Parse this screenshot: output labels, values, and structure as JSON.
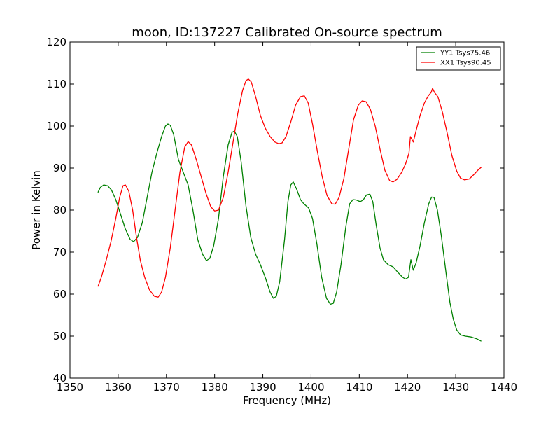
{
  "chart_data": {
    "type": "line",
    "title": "moon, ID:137227 Calibrated On-source spectrum",
    "xlabel": "Frequency (MHz)",
    "ylabel": "Power in Kelvin",
    "xlim": [
      1350,
      1440
    ],
    "ylim": [
      40,
      120
    ],
    "xticks": [
      "1350",
      "1360",
      "1370",
      "1380",
      "1390",
      "1400",
      "1410",
      "1420",
      "1430",
      "1440"
    ],
    "yticks": [
      "40",
      "50",
      "60",
      "70",
      "80",
      "90",
      "100",
      "110",
      "120"
    ],
    "grid": false,
    "legend_position": "top-right",
    "series": [
      {
        "name": "YY1 Tsys75.46",
        "color": "#008000",
        "points": [
          [
            1355.8,
            84.2
          ],
          [
            1356.3,
            85.4
          ],
          [
            1357.0,
            86.0
          ],
          [
            1357.8,
            85.8
          ],
          [
            1358.6,
            84.8
          ],
          [
            1359.5,
            82.5
          ],
          [
            1360.5,
            79.0
          ],
          [
            1361.5,
            75.5
          ],
          [
            1362.5,
            73.0
          ],
          [
            1363.2,
            72.5
          ],
          [
            1364.0,
            73.5
          ],
          [
            1365.0,
            77.0
          ],
          [
            1366.0,
            83.0
          ],
          [
            1367.0,
            89.0
          ],
          [
            1368.0,
            93.5
          ],
          [
            1369.0,
            97.5
          ],
          [
            1369.8,
            100.0
          ],
          [
            1370.3,
            100.5
          ],
          [
            1370.8,
            100.2
          ],
          [
            1371.5,
            98.0
          ],
          [
            1372.5,
            92.0
          ],
          [
            1373.5,
            89.0
          ],
          [
            1374.5,
            86.0
          ],
          [
            1375.5,
            80.0
          ],
          [
            1376.5,
            73.0
          ],
          [
            1377.5,
            69.5
          ],
          [
            1378.3,
            68.0
          ],
          [
            1379.0,
            68.5
          ],
          [
            1379.8,
            71.5
          ],
          [
            1380.8,
            78.0
          ],
          [
            1381.8,
            88.0
          ],
          [
            1382.8,
            95.5
          ],
          [
            1383.6,
            98.5
          ],
          [
            1384.1,
            98.8
          ],
          [
            1384.7,
            97.5
          ],
          [
            1385.5,
            91.5
          ],
          [
            1386.5,
            81.0
          ],
          [
            1387.5,
            73.5
          ],
          [
            1388.5,
            69.5
          ],
          [
            1389.5,
            67.0
          ],
          [
            1390.5,
            64.0
          ],
          [
            1391.5,
            60.5
          ],
          [
            1392.2,
            59.0
          ],
          [
            1392.8,
            59.5
          ],
          [
            1393.5,
            63.0
          ],
          [
            1394.5,
            73.0
          ],
          [
            1395.2,
            82.0
          ],
          [
            1395.8,
            86.0
          ],
          [
            1396.3,
            86.7
          ],
          [
            1397.0,
            85.0
          ],
          [
            1397.8,
            82.5
          ],
          [
            1398.5,
            81.5
          ],
          [
            1399.5,
            80.5
          ],
          [
            1400.3,
            78.0
          ],
          [
            1401.2,
            72.0
          ],
          [
            1402.2,
            64.0
          ],
          [
            1403.2,
            59.0
          ],
          [
            1404.0,
            57.6
          ],
          [
            1404.6,
            57.8
          ],
          [
            1405.3,
            60.5
          ],
          [
            1406.2,
            67.0
          ],
          [
            1407.2,
            76.0
          ],
          [
            1408.0,
            81.5
          ],
          [
            1408.7,
            82.5
          ],
          [
            1409.4,
            82.4
          ],
          [
            1410.2,
            82.0
          ],
          [
            1410.8,
            82.4
          ],
          [
            1411.5,
            83.6
          ],
          [
            1412.2,
            83.8
          ],
          [
            1412.8,
            82.0
          ],
          [
            1413.5,
            76.5
          ],
          [
            1414.3,
            71.0
          ],
          [
            1415.0,
            68.2
          ],
          [
            1416.0,
            67.0
          ],
          [
            1417.0,
            66.5
          ],
          [
            1418.0,
            65.2
          ],
          [
            1419.0,
            64.0
          ],
          [
            1419.6,
            63.6
          ],
          [
            1420.2,
            64.0
          ],
          [
            1420.7,
            68.2
          ],
          [
            1421.2,
            65.7
          ],
          [
            1421.8,
            67.5
          ],
          [
            1422.6,
            71.5
          ],
          [
            1423.5,
            77.0
          ],
          [
            1424.4,
            81.5
          ],
          [
            1425.0,
            83.1
          ],
          [
            1425.5,
            83.0
          ],
          [
            1426.2,
            80.0
          ],
          [
            1427.0,
            74.0
          ],
          [
            1428.0,
            65.0
          ],
          [
            1428.8,
            58.0
          ],
          [
            1429.5,
            54.0
          ],
          [
            1430.2,
            51.5
          ],
          [
            1431.0,
            50.3
          ],
          [
            1432.0,
            50.0
          ],
          [
            1433.2,
            49.8
          ],
          [
            1434.3,
            49.4
          ],
          [
            1435.3,
            48.8
          ]
        ]
      },
      {
        "name": "XX1 Tsys90.45",
        "color": "#ff0000",
        "points": [
          [
            1355.8,
            61.8
          ],
          [
            1356.5,
            64.0
          ],
          [
            1357.5,
            68.0
          ],
          [
            1358.5,
            72.5
          ],
          [
            1359.5,
            78.0
          ],
          [
            1360.3,
            83.0
          ],
          [
            1361.0,
            85.8
          ],
          [
            1361.5,
            86.0
          ],
          [
            1362.2,
            84.5
          ],
          [
            1363.0,
            80.0
          ],
          [
            1363.8,
            73.5
          ],
          [
            1364.6,
            68.0
          ],
          [
            1365.5,
            64.0
          ],
          [
            1366.5,
            61.0
          ],
          [
            1367.5,
            59.5
          ],
          [
            1368.3,
            59.3
          ],
          [
            1369.0,
            60.5
          ],
          [
            1369.8,
            64.0
          ],
          [
            1370.8,
            71.0
          ],
          [
            1371.8,
            80.0
          ],
          [
            1372.8,
            89.0
          ],
          [
            1373.8,
            95.0
          ],
          [
            1374.5,
            96.3
          ],
          [
            1375.2,
            95.5
          ],
          [
            1376.2,
            92.0
          ],
          [
            1377.2,
            88.0
          ],
          [
            1378.2,
            84.0
          ],
          [
            1379.2,
            80.8
          ],
          [
            1380.0,
            79.8
          ],
          [
            1380.8,
            80.0
          ],
          [
            1381.8,
            83.0
          ],
          [
            1382.8,
            89.0
          ],
          [
            1383.8,
            96.0
          ],
          [
            1384.8,
            103.0
          ],
          [
            1385.8,
            108.5
          ],
          [
            1386.5,
            110.8
          ],
          [
            1387.0,
            111.2
          ],
          [
            1387.6,
            110.5
          ],
          [
            1388.5,
            107.0
          ],
          [
            1389.5,
            102.5
          ],
          [
            1390.5,
            99.5
          ],
          [
            1391.5,
            97.5
          ],
          [
            1392.5,
            96.2
          ],
          [
            1393.3,
            95.8
          ],
          [
            1394.0,
            96.0
          ],
          [
            1394.8,
            97.5
          ],
          [
            1395.8,
            101.0
          ],
          [
            1396.8,
            105.0
          ],
          [
            1397.8,
            107.0
          ],
          [
            1398.6,
            107.2
          ],
          [
            1399.4,
            105.5
          ],
          [
            1400.3,
            100.5
          ],
          [
            1401.3,
            94.0
          ],
          [
            1402.3,
            88.0
          ],
          [
            1403.3,
            83.5
          ],
          [
            1404.3,
            81.5
          ],
          [
            1405.0,
            81.4
          ],
          [
            1405.8,
            83.0
          ],
          [
            1406.8,
            87.5
          ],
          [
            1407.8,
            94.5
          ],
          [
            1408.8,
            101.5
          ],
          [
            1409.8,
            105.0
          ],
          [
            1410.6,
            106.0
          ],
          [
            1411.4,
            105.8
          ],
          [
            1412.3,
            104.0
          ],
          [
            1413.3,
            100.0
          ],
          [
            1414.3,
            94.5
          ],
          [
            1415.3,
            89.5
          ],
          [
            1416.3,
            87.0
          ],
          [
            1417.0,
            86.7
          ],
          [
            1417.8,
            87.3
          ],
          [
            1418.8,
            89.0
          ],
          [
            1419.6,
            91.0
          ],
          [
            1420.3,
            93.5
          ],
          [
            1420.6,
            97.5
          ],
          [
            1421.2,
            96.2
          ],
          [
            1421.8,
            99.0
          ],
          [
            1422.6,
            102.5
          ],
          [
            1423.5,
            105.5
          ],
          [
            1424.3,
            107.2
          ],
          [
            1424.9,
            108.0
          ],
          [
            1425.2,
            109.0
          ],
          [
            1425.6,
            108.0
          ],
          [
            1426.3,
            107.0
          ],
          [
            1427.2,
            103.5
          ],
          [
            1428.2,
            98.5
          ],
          [
            1429.2,
            93.0
          ],
          [
            1430.2,
            89.3
          ],
          [
            1431.0,
            87.6
          ],
          [
            1431.8,
            87.2
          ],
          [
            1432.8,
            87.4
          ],
          [
            1433.8,
            88.5
          ],
          [
            1434.6,
            89.5
          ],
          [
            1435.3,
            90.2
          ]
        ]
      }
    ]
  }
}
